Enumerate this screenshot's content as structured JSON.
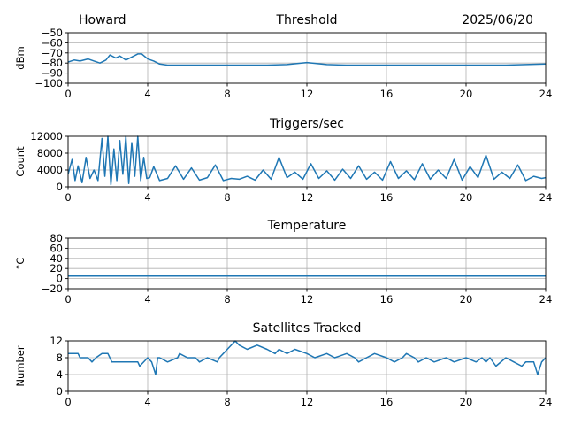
{
  "header": {
    "station": "Howard",
    "date": "2025/06/20"
  },
  "colors": {
    "series": "#1f77b4",
    "grid": "#b0b0b0"
  },
  "chart_data": [
    {
      "type": "line",
      "title": "Threshold",
      "xlabel": "",
      "ylabel": "dBm",
      "xlim": [
        0,
        24
      ],
      "ylim": [
        -100,
        -50
      ],
      "xticks": [
        0,
        4,
        8,
        12,
        16,
        20,
        24
      ],
      "yticks": [
        -100,
        -90,
        -80,
        -70,
        -60,
        -50
      ],
      "yticklabels": [
        "−100",
        "−90",
        "−80",
        "−70",
        "−60",
        "−50"
      ],
      "grid": true,
      "series": [
        {
          "x": [
            0,
            0.3,
            0.6,
            1.0,
            1.3,
            1.6,
            1.9,
            2.1,
            2.4,
            2.6,
            2.9,
            3.2,
            3.5,
            3.7,
            4.0,
            4.3,
            4.6,
            5.0,
            5.5,
            6,
            7,
            8,
            9,
            10,
            11,
            11.5,
            12,
            12.5,
            13,
            14,
            15,
            16,
            17,
            18,
            19,
            20,
            21,
            22,
            23,
            24
          ],
          "y": [
            -79,
            -77,
            -78,
            -76,
            -78,
            -80,
            -77,
            -72,
            -75,
            -73,
            -77,
            -74,
            -71,
            -71,
            -76,
            -78,
            -81,
            -82,
            -82,
            -82,
            -82,
            -82,
            -82,
            -82,
            -81.5,
            -80.5,
            -79.5,
            -80.5,
            -81.5,
            -82,
            -82,
            -82,
            -82,
            -82,
            -82,
            -82,
            -82,
            -82,
            -81.5,
            -81
          ]
        }
      ]
    },
    {
      "type": "line",
      "title": "Triggers/sec",
      "xlabel": "",
      "ylabel": "Count",
      "xlim": [
        0,
        24
      ],
      "ylim": [
        0,
        12000
      ],
      "xticks": [
        0,
        4,
        8,
        12,
        16,
        20,
        24
      ],
      "yticks": [
        0,
        4000,
        8000,
        12000
      ],
      "yticklabels": [
        "0",
        "4000",
        "8000",
        "12000"
      ],
      "grid": true,
      "series": [
        {
          "x": [
            0,
            0.2,
            0.35,
            0.5,
            0.7,
            0.9,
            1.1,
            1.3,
            1.5,
            1.7,
            1.85,
            2.0,
            2.15,
            2.3,
            2.45,
            2.6,
            2.75,
            2.9,
            3.05,
            3.2,
            3.35,
            3.5,
            3.65,
            3.8,
            3.95,
            4.1,
            4.3,
            4.6,
            5.0,
            5.4,
            5.8,
            6.2,
            6.6,
            7.0,
            7.4,
            7.8,
            8.2,
            8.6,
            9.0,
            9.4,
            9.8,
            10.2,
            10.6,
            11.0,
            11.4,
            11.8,
            12.2,
            12.6,
            13.0,
            13.4,
            13.8,
            14.2,
            14.6,
            15.0,
            15.4,
            15.8,
            16.2,
            16.6,
            17.0,
            17.4,
            17.8,
            18.2,
            18.6,
            19.0,
            19.4,
            19.8,
            20.2,
            20.6,
            21.0,
            21.4,
            21.8,
            22.2,
            22.6,
            23.0,
            23.4,
            23.8,
            24
          ],
          "y": [
            3000,
            6500,
            1500,
            5000,
            1000,
            7000,
            2000,
            4000,
            1500,
            11500,
            2500,
            12000,
            500,
            9000,
            1500,
            11000,
            3000,
            12000,
            800,
            10500,
            2500,
            12000,
            1500,
            7000,
            2000,
            2200,
            4800,
            1500,
            2000,
            5000,
            1800,
            4500,
            1600,
            2200,
            5200,
            1500,
            2000,
            1800,
            2500,
            1600,
            4000,
            1800,
            7000,
            2200,
            3500,
            1800,
            5500,
            2000,
            3800,
            1600,
            4200,
            2000,
            5000,
            1800,
            3500,
            1600,
            6000,
            2000,
            3800,
            1700,
            5500,
            1800,
            4000,
            2000,
            6500,
            1600,
            4800,
            2200,
            7500,
            1800,
            3500,
            2000,
            5200,
            1500,
            2500,
            2000,
            2200
          ]
        }
      ]
    },
    {
      "type": "line",
      "title": "Temperature",
      "xlabel": "",
      "ylabel": "°C",
      "xlim": [
        0,
        24
      ],
      "ylim": [
        -20,
        80
      ],
      "xticks": [
        0,
        4,
        8,
        12,
        16,
        20,
        24
      ],
      "yticks": [
        -20,
        0,
        20,
        40,
        60,
        80
      ],
      "yticklabels": [
        "−20",
        "0",
        "20",
        "40",
        "60",
        "80"
      ],
      "grid": true,
      "series": [
        {
          "x": [
            0,
            24
          ],
          "y": [
            5,
            5
          ]
        }
      ]
    },
    {
      "type": "line",
      "title": "Satellites Tracked",
      "xlabel": "",
      "ylabel": "Number",
      "xlim": [
        0,
        24
      ],
      "ylim": [
        0,
        12
      ],
      "xticks": [
        0,
        4,
        8,
        12,
        16,
        20,
        24
      ],
      "yticks": [
        0,
        4,
        8,
        12
      ],
      "yticklabels": [
        "0",
        "4",
        "8",
        "12"
      ],
      "grid": true,
      "series": [
        {
          "x": [
            0,
            0.5,
            0.6,
            1.0,
            1.2,
            1.4,
            1.7,
            2.0,
            2.2,
            2.3,
            3.5,
            3.6,
            4.0,
            4.2,
            4.4,
            4.5,
            4.6,
            5.0,
            5.5,
            5.6,
            6.0,
            6.4,
            6.6,
            7.0,
            7.5,
            7.6,
            8.0,
            8.4,
            8.6,
            9.0,
            9.5,
            10.0,
            10.4,
            10.6,
            11.0,
            11.4,
            12.0,
            12.4,
            13.0,
            13.4,
            14.0,
            14.4,
            14.6,
            15.0,
            15.4,
            16.0,
            16.4,
            16.8,
            17.0,
            17.4,
            17.6,
            18.0,
            18.4,
            19.0,
            19.4,
            20.0,
            20.5,
            20.8,
            21.0,
            21.2,
            21.5,
            22.0,
            22.4,
            22.8,
            23.0,
            23.4,
            23.6,
            23.8,
            24
          ],
          "y": [
            9,
            9,
            8,
            8,
            7,
            8,
            9,
            9,
            7,
            7,
            7,
            6,
            8,
            7,
            4,
            8,
            8,
            7,
            8,
            9,
            8,
            8,
            7,
            8,
            7,
            8,
            10,
            12,
            11,
            10,
            11,
            10,
            9,
            10,
            9,
            10,
            9,
            8,
            9,
            8,
            9,
            8,
            7,
            8,
            9,
            8,
            7,
            8,
            9,
            8,
            7,
            8,
            7,
            8,
            7,
            8,
            7,
            8,
            7,
            8,
            6,
            8,
            7,
            6,
            7,
            7,
            4,
            7,
            8
          ]
        }
      ]
    }
  ]
}
